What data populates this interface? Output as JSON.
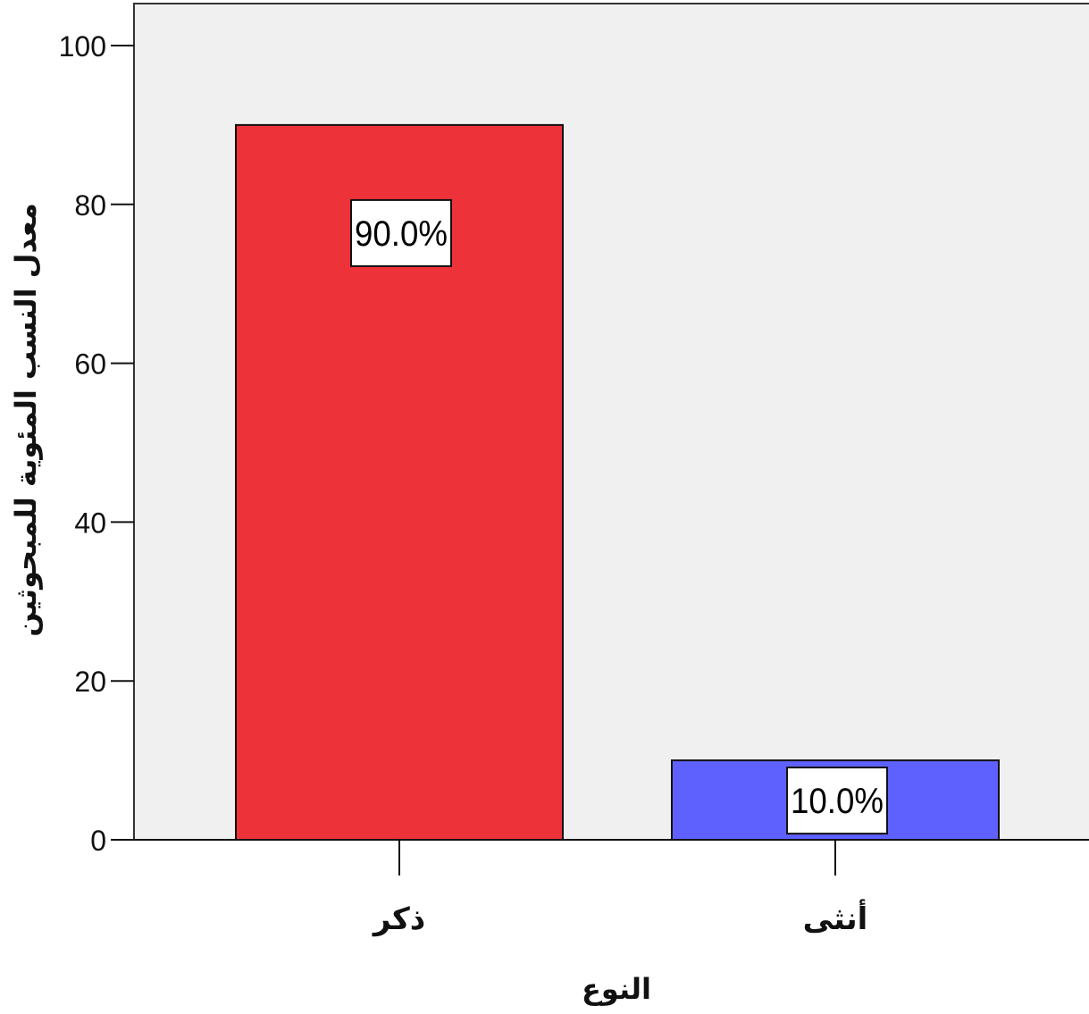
{
  "chart_data": {
    "type": "bar",
    "categories": [
      "ذكر",
      "أنثى"
    ],
    "values": [
      90.0,
      10.0
    ],
    "data_labels": [
      "90.0%",
      "10.0%"
    ],
    "bar_colors": [
      "#ee3239",
      "#5f61ff"
    ],
    "plot_background": "#f0f0f0",
    "title": "",
    "xlabel": "النوع",
    "ylabel": "معدل النسب المئوية للمبحوثين",
    "ylim": [
      0,
      100
    ],
    "yticks": [
      0,
      20,
      40,
      60,
      80,
      100
    ],
    "grid": false,
    "legend": "none"
  }
}
